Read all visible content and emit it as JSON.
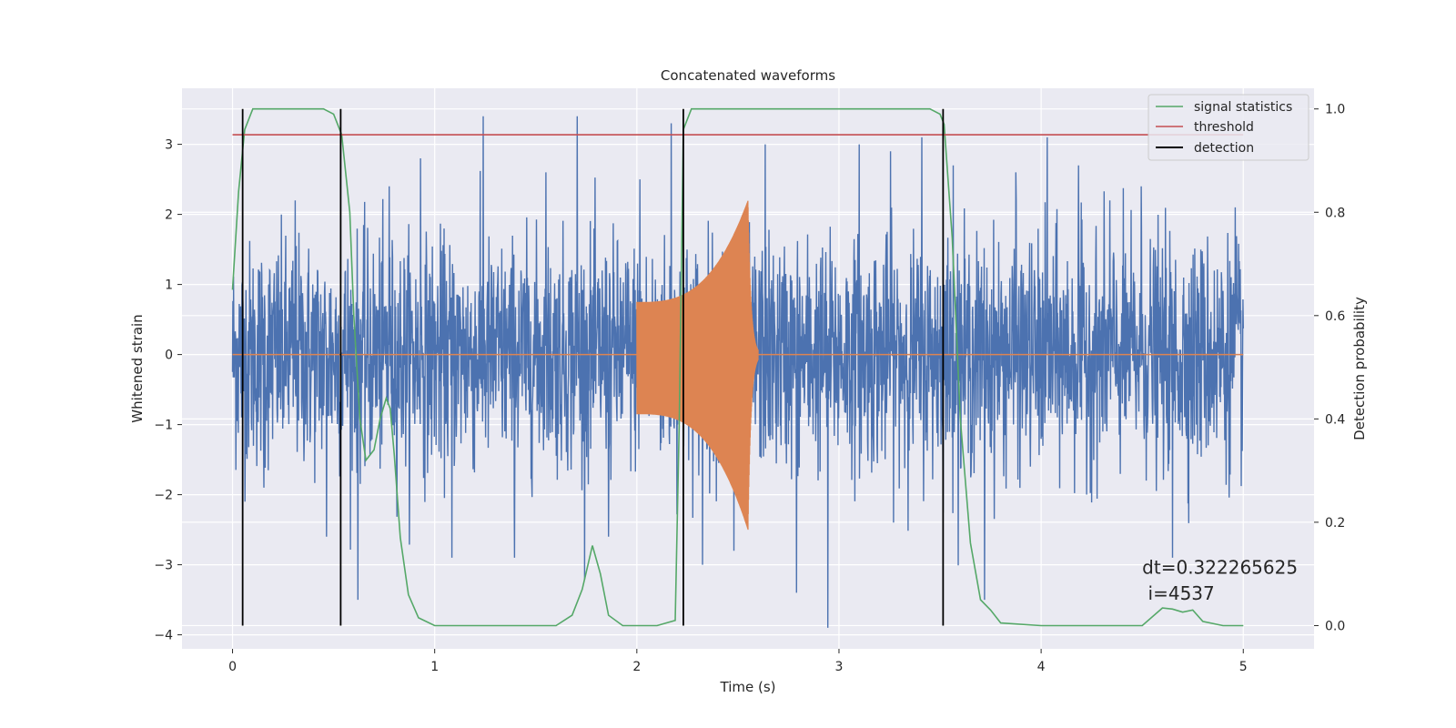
{
  "chart_data": {
    "type": "line",
    "title": "Concatenated waveforms",
    "xlabel": "Time (s)",
    "ylabel": "Whitened strain",
    "y2label": "Detection probability",
    "xlim": [
      -0.25,
      5.35
    ],
    "ylim": [
      -4.2,
      3.8
    ],
    "y2lim": [
      -0.045,
      1.04
    ],
    "xticks": [
      0,
      1,
      2,
      3,
      4,
      5
    ],
    "yticks": [
      -4,
      -3,
      -2,
      -1,
      0,
      1,
      2,
      3
    ],
    "y2ticks": [
      0.0,
      0.2,
      0.4,
      0.6,
      0.8,
      1.0
    ],
    "xtick_labels": [
      "0",
      "1",
      "2",
      "3",
      "4",
      "5"
    ],
    "ytick_labels": [
      "−4",
      "−3",
      "−2",
      "−1",
      "0",
      "1",
      "2",
      "3"
    ],
    "y2tick_labels": [
      "0.0",
      "0.2",
      "0.4",
      "0.6",
      "0.8",
      "1.0"
    ],
    "grid": true,
    "legend_position": "top-right",
    "colors": {
      "strain": "#4c72b0",
      "template": "#dd8452",
      "statistics": "#55a868",
      "threshold": "#c44e52",
      "detection": "#000000",
      "background": "#eaeaf2",
      "grid": "#ffffff"
    },
    "series": [
      {
        "name": "",
        "kind": "noise",
        "axis": "left",
        "x_range": [
          0,
          5
        ],
        "typical_amplitude": 1.0,
        "peak_values": [
          2.1,
          -1.9,
          2.2,
          -2.6,
          -3.5,
          2.4,
          2.8,
          -2.9,
          3.4,
          -2.9,
          2.6,
          3.4,
          -2.6,
          2.5,
          3.3,
          -3.0,
          -2.8,
          3.0,
          -3.4,
          -3.9,
          3.0,
          2.9,
          3.1,
          2.7,
          -3.5,
          2.6,
          3.1,
          2.7,
          2.2,
          2.4,
          -2.9,
          1.3
        ]
      },
      {
        "name": "",
        "kind": "chirp",
        "axis": "left",
        "x_start": 2.0,
        "x_merger": 2.55,
        "x_end": 2.6,
        "start_amplitude": 0.75,
        "peak_high": 2.2,
        "peak_low": -2.5
      },
      {
        "name": "signal statistics",
        "axis": "right",
        "x": [
          0.0,
          0.03,
          0.06,
          0.1,
          0.15,
          0.3,
          0.45,
          0.5,
          0.54,
          0.58,
          0.6,
          0.63,
          0.66,
          0.7,
          0.73,
          0.76,
          0.78,
          0.8,
          0.83,
          0.87,
          0.92,
          1.0,
          1.6,
          1.68,
          1.73,
          1.78,
          1.82,
          1.86,
          1.93,
          2.1,
          2.19,
          2.21,
          2.23,
          2.27,
          2.4,
          3.45,
          3.5,
          3.52,
          3.56,
          3.6,
          3.65,
          3.7,
          3.75,
          3.8,
          4.0,
          4.5,
          4.6,
          4.65,
          4.7,
          4.75,
          4.8,
          4.9,
          5.0
        ],
        "y": [
          0.65,
          0.84,
          0.96,
          1.0,
          1.0,
          1.0,
          1.0,
          0.99,
          0.95,
          0.8,
          0.6,
          0.4,
          0.32,
          0.34,
          0.4,
          0.44,
          0.42,
          0.33,
          0.17,
          0.06,
          0.015,
          0.0,
          0.0,
          0.02,
          0.07,
          0.155,
          0.1,
          0.02,
          0.0,
          0.0,
          0.01,
          0.4,
          0.96,
          1.0,
          1.0,
          1.0,
          0.99,
          0.97,
          0.75,
          0.4,
          0.16,
          0.05,
          0.03,
          0.005,
          0.0,
          0.0,
          0.034,
          0.032,
          0.026,
          0.03,
          0.008,
          0.0,
          0.0
        ]
      },
      {
        "name": "threshold",
        "axis": "right",
        "x": [
          0,
          5
        ],
        "y": [
          0.95,
          0.95
        ]
      },
      {
        "name": "detection",
        "axis": "right",
        "kind": "vlines",
        "x": [
          0.05,
          0.535,
          2.23,
          3.515
        ],
        "ymin": 0.0,
        "ymax": 1.0
      }
    ],
    "annotations": [
      {
        "text": "dt=0.322265625",
        "x": 4.5,
        "y2": 0.1
      },
      {
        "text": " i=4537",
        "x": 4.5,
        "y2": 0.05
      }
    ]
  }
}
